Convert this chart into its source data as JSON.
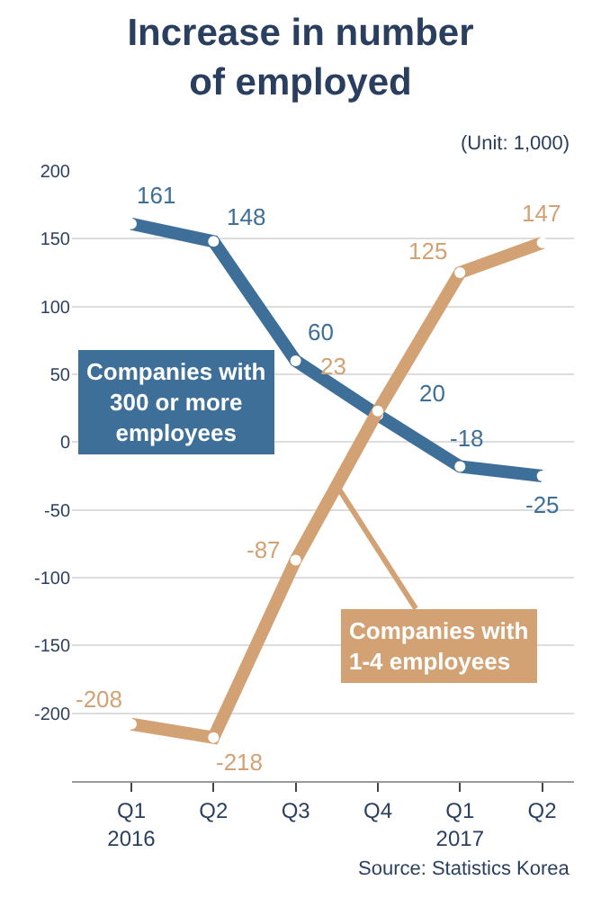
{
  "chart_data": {
    "type": "line",
    "title": "Increase in number\nof employed",
    "annotations": [
      "(Unit: 1,000)",
      "Source: Statistics Korea"
    ],
    "categories": [
      "Q1\n2016",
      "Q2",
      "Q3",
      "Q4",
      "Q1\n2017",
      "Q2"
    ],
    "series": [
      {
        "name": "Companies with\n300 or more\nemployees",
        "color": "#3d6f99",
        "values": [
          161,
          148,
          60,
          20,
          -18,
          -25
        ]
      },
      {
        "name": "Companies with\n1-4 employees",
        "color": "#d3a274",
        "values": [
          -208,
          -218,
          -87,
          23,
          125,
          147
        ]
      }
    ],
    "ylim": [
      -250,
      200
    ],
    "yticks": [
      -200,
      -150,
      -100,
      -50,
      0,
      50,
      100,
      150,
      200
    ],
    "grid": "y",
    "data_labels": true,
    "marker": "circle",
    "line_style": "solid",
    "legend": false
  }
}
